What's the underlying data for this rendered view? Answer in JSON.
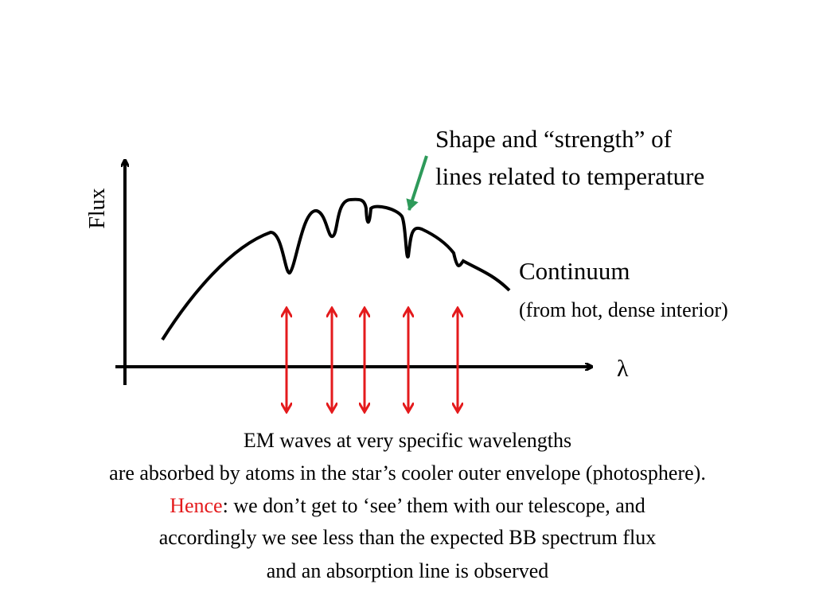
{
  "diagram": {
    "axis_labels": {
      "y": "Flux",
      "x": "λ"
    },
    "annotations": {
      "line_shape": [
        "Shape and “strength” of",
        "lines related to temperature"
      ],
      "continuum": "Continuum",
      "continuum_note": "(from hot, dense interior)"
    },
    "caption": {
      "lines": [
        "EM waves at very specific wavelengths",
        "are absorbed by atoms in the star’s cooler outer envelope (photosphere).",
        {
          "highlight": "Hence",
          "rest": ": we don’t get to ‘see’ them with our telescope, and"
        },
        "accordingly we see less than the expected BB spectrum flux",
        "and an absorption line is observed"
      ]
    }
  }
}
